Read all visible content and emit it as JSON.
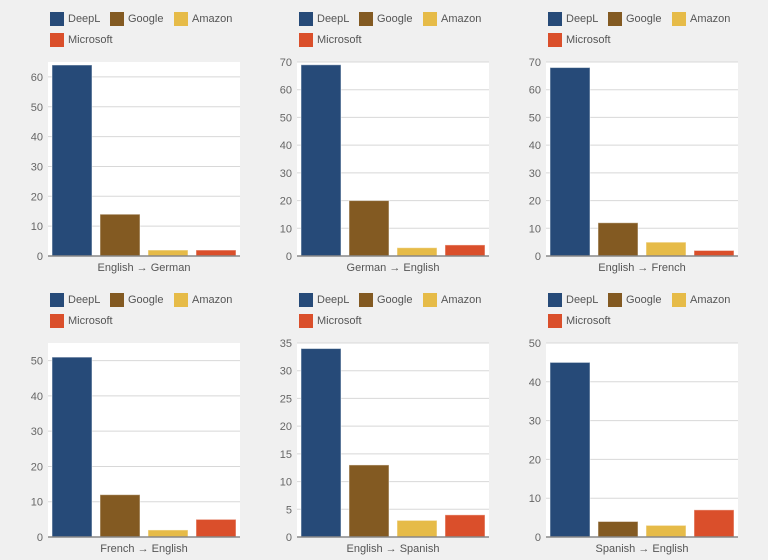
{
  "legend": [
    {
      "name": "DeepL",
      "color": "#264a78"
    },
    {
      "name": "Google",
      "color": "#835a22"
    },
    {
      "name": "Amazon",
      "color": "#e6bb48"
    },
    {
      "name": "Microsoft",
      "color": "#da4f2b"
    }
  ],
  "chart_data": [
    {
      "type": "bar",
      "xlabel": "English → German",
      "categories": [
        "DeepL",
        "Google",
        "Amazon",
        "Microsoft"
      ],
      "values": [
        64,
        14,
        2,
        2
      ],
      "ylim": [
        0,
        65
      ],
      "yticks": [
        0,
        10,
        20,
        30,
        40,
        50,
        60
      ],
      "grid": true,
      "legend": "top"
    },
    {
      "type": "bar",
      "xlabel": "German → English",
      "categories": [
        "DeepL",
        "Google",
        "Amazon",
        "Microsoft"
      ],
      "values": [
        69,
        20,
        3,
        4
      ],
      "ylim": [
        0,
        70
      ],
      "yticks": [
        0,
        10,
        20,
        30,
        40,
        50,
        60,
        70
      ],
      "grid": true,
      "legend": "top"
    },
    {
      "type": "bar",
      "xlabel": "English → French",
      "categories": [
        "DeepL",
        "Google",
        "Amazon",
        "Microsoft"
      ],
      "values": [
        68,
        12,
        5,
        2
      ],
      "ylim": [
        0,
        70
      ],
      "yticks": [
        0,
        10,
        20,
        30,
        40,
        50,
        60,
        70
      ],
      "grid": true,
      "legend": "top"
    },
    {
      "type": "bar",
      "xlabel": "French → English",
      "categories": [
        "DeepL",
        "Google",
        "Amazon",
        "Microsoft"
      ],
      "values": [
        51,
        12,
        2,
        5
      ],
      "ylim": [
        0,
        55
      ],
      "yticks": [
        0,
        10,
        20,
        30,
        40,
        50
      ],
      "grid": true,
      "legend": "top"
    },
    {
      "type": "bar",
      "xlabel": "English → Spanish",
      "categories": [
        "DeepL",
        "Google",
        "Amazon",
        "Microsoft"
      ],
      "values": [
        34,
        13,
        3,
        4
      ],
      "ylim": [
        0,
        35
      ],
      "yticks": [
        0,
        5,
        10,
        15,
        20,
        25,
        30,
        35
      ],
      "grid": true,
      "legend": "top"
    },
    {
      "type": "bar",
      "xlabel": "Spanish → English",
      "categories": [
        "DeepL",
        "Google",
        "Amazon",
        "Microsoft"
      ],
      "values": [
        45,
        4,
        3,
        7
      ],
      "ylim": [
        0,
        50
      ],
      "yticks": [
        0,
        10,
        20,
        30,
        40,
        50
      ],
      "grid": true,
      "legend": "top"
    }
  ]
}
